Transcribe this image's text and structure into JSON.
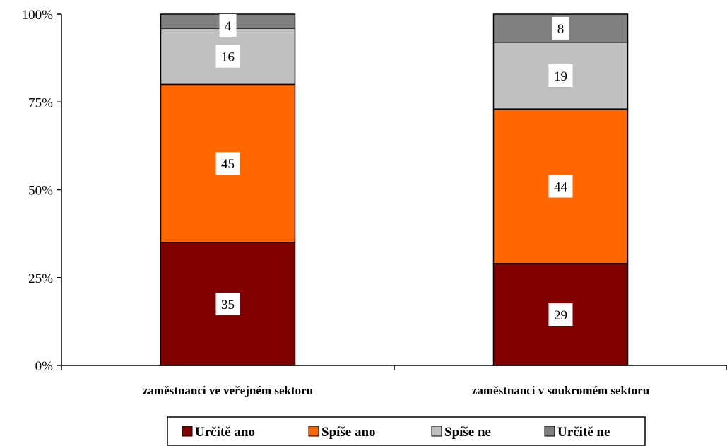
{
  "chart_data": {
    "type": "bar",
    "stacked": true,
    "percent_stacked": true,
    "categories": [
      "zaměstnanci ve veřejném sektoru",
      "zaměstnanci v soukromém sektoru"
    ],
    "series": [
      {
        "name": "Určitě ano",
        "values": [
          35,
          29
        ],
        "color": "#800000"
      },
      {
        "name": "Spíše ano",
        "values": [
          45,
          44
        ],
        "color": "#FF6600"
      },
      {
        "name": "Spíše ne",
        "values": [
          16,
          19
        ],
        "color": "#C0C0C0"
      },
      {
        "name": "Určitě ne",
        "values": [
          4,
          8
        ],
        "color": "#808080"
      }
    ],
    "yticks": [
      "0%",
      "25%",
      "50%",
      "75%",
      "100%"
    ],
    "ylim": [
      0,
      100
    ],
    "grid": false,
    "legend_position": "bottom"
  }
}
